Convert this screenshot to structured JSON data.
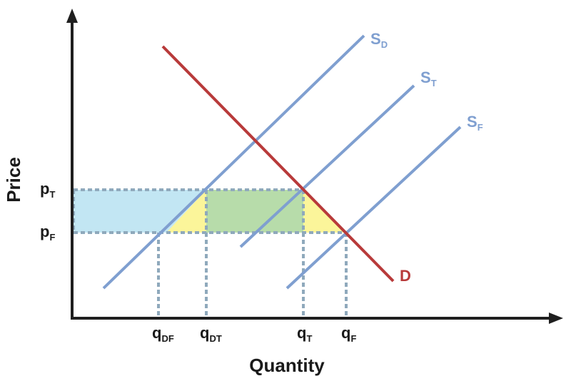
{
  "axes": {
    "x_label": "Quantity",
    "y_label": "Price"
  },
  "price_labels": {
    "pT": {
      "main": "p",
      "sub": "T"
    },
    "pF": {
      "main": "p",
      "sub": "F"
    }
  },
  "quantity_labels": {
    "qDF": {
      "main": "q",
      "sub": "DF"
    },
    "qDT": {
      "main": "q",
      "sub": "DT"
    },
    "qT": {
      "main": "q",
      "sub": "T"
    },
    "qF": {
      "main": "q",
      "sub": "F"
    }
  },
  "curve_labels": {
    "SD": {
      "main": "S",
      "sub": "D"
    },
    "ST": {
      "main": "S",
      "sub": "T"
    },
    "SF": {
      "main": "S",
      "sub": "F"
    },
    "D": {
      "main": "D"
    }
  },
  "colors": {
    "axis": "#1f1f1f",
    "supply": "#7f9fd0",
    "demand": "#b83a3a",
    "guide": "#8fa9bc",
    "region_blue": "#c2e6f3",
    "region_green": "#b7dcaa",
    "region_yellow": "#fbf59a",
    "label": "#1a1a1a",
    "supply_label": "#7f9fd0",
    "demand_label": "#b83a3a"
  }
}
